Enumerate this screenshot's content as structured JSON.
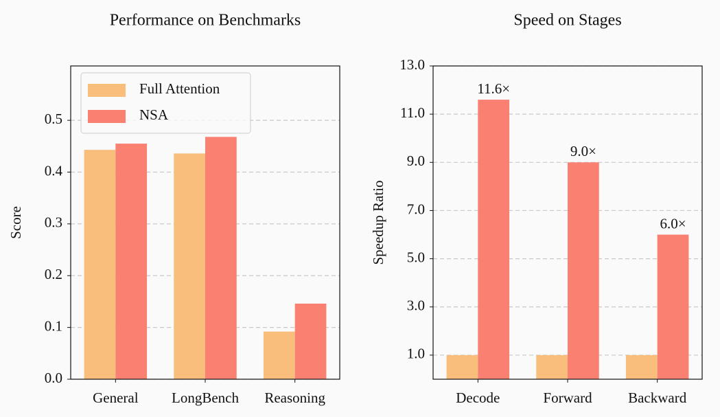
{
  "chart_data": [
    {
      "type": "bar",
      "title": "Performance on Benchmarks",
      "ylabel": "Score",
      "categories": [
        "General",
        "LongBench",
        "Reasoning"
      ],
      "series": [
        {
          "name": "Full Attention",
          "color": "#f9be7c",
          "values": [
            0.443,
            0.436,
            0.092
          ]
        },
        {
          "name": "NSA",
          "color": "#fa8072",
          "values": [
            0.455,
            0.468,
            0.146
          ]
        }
      ],
      "ylim": [
        0,
        0.605
      ],
      "yticks": [
        {
          "value": 0,
          "label": "0.0"
        },
        0.1,
        0.2,
        0.3,
        0.4,
        0.5
      ],
      "grid": true,
      "legend": "upper-left"
    },
    {
      "type": "bar",
      "title": "Speed on Stages",
      "ylabel": "Speedup Ratio",
      "categories": [
        "Decode",
        "Forward",
        "Backward"
      ],
      "series": [
        {
          "color": "#f9be7c",
          "values": [
            1,
            1,
            1
          ]
        },
        {
          "color": "#fa8072",
          "values": [
            11.6,
            9.0,
            6.0
          ],
          "value_labels": [
            "11.6×",
            "9.0×",
            "6.0×"
          ]
        }
      ],
      "ylim": [
        0,
        13
      ],
      "yticks": [
        {
          "value": 1,
          "label": "1.0"
        },
        {
          "value": 3,
          "label": "3.0"
        },
        {
          "value": 5,
          "label": "5.0"
        },
        {
          "value": 7,
          "label": "7.0"
        },
        {
          "value": 9,
          "label": "9.0"
        },
        {
          "value": 11,
          "label": "11.0"
        },
        {
          "value": 13,
          "label": "13.0"
        }
      ],
      "grid": true
    }
  ]
}
